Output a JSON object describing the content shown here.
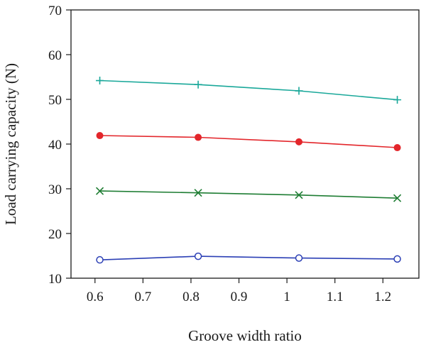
{
  "chart_data": {
    "type": "line",
    "title": "",
    "xlabel": "Groove width ratio",
    "ylabel": "Load carrying capacity (N)",
    "xlim": [
      0.55,
      1.275
    ],
    "ylim": [
      10,
      70
    ],
    "xticks": [
      0.6,
      0.7,
      0.8,
      0.9,
      1.0,
      1.1,
      1.2
    ],
    "xtick_labels": [
      "0.6",
      "0.7",
      "0.8",
      "0.9",
      "1",
      "1.1",
      "1.2"
    ],
    "yticks": [
      10,
      20,
      30,
      40,
      50,
      60,
      70
    ],
    "ytick_labels": [
      "10",
      "20",
      "30",
      "40",
      "50",
      "60",
      "70"
    ],
    "grid": false,
    "x": [
      0.61,
      0.815,
      1.025,
      1.23
    ],
    "series": [
      {
        "marker": "plus",
        "color": "#1aa89a",
        "values": [
          54.2,
          53.3,
          51.9,
          49.9
        ]
      },
      {
        "marker": "filled-circle",
        "color": "#e3262b",
        "values": [
          41.9,
          41.5,
          40.5,
          39.2
        ]
      },
      {
        "marker": "cross",
        "color": "#1e7d33",
        "values": [
          29.5,
          29.1,
          28.6,
          27.9
        ]
      },
      {
        "marker": "open-circle",
        "color": "#2b3fb5",
        "values": [
          14.1,
          14.9,
          14.5,
          14.3
        ]
      }
    ]
  }
}
